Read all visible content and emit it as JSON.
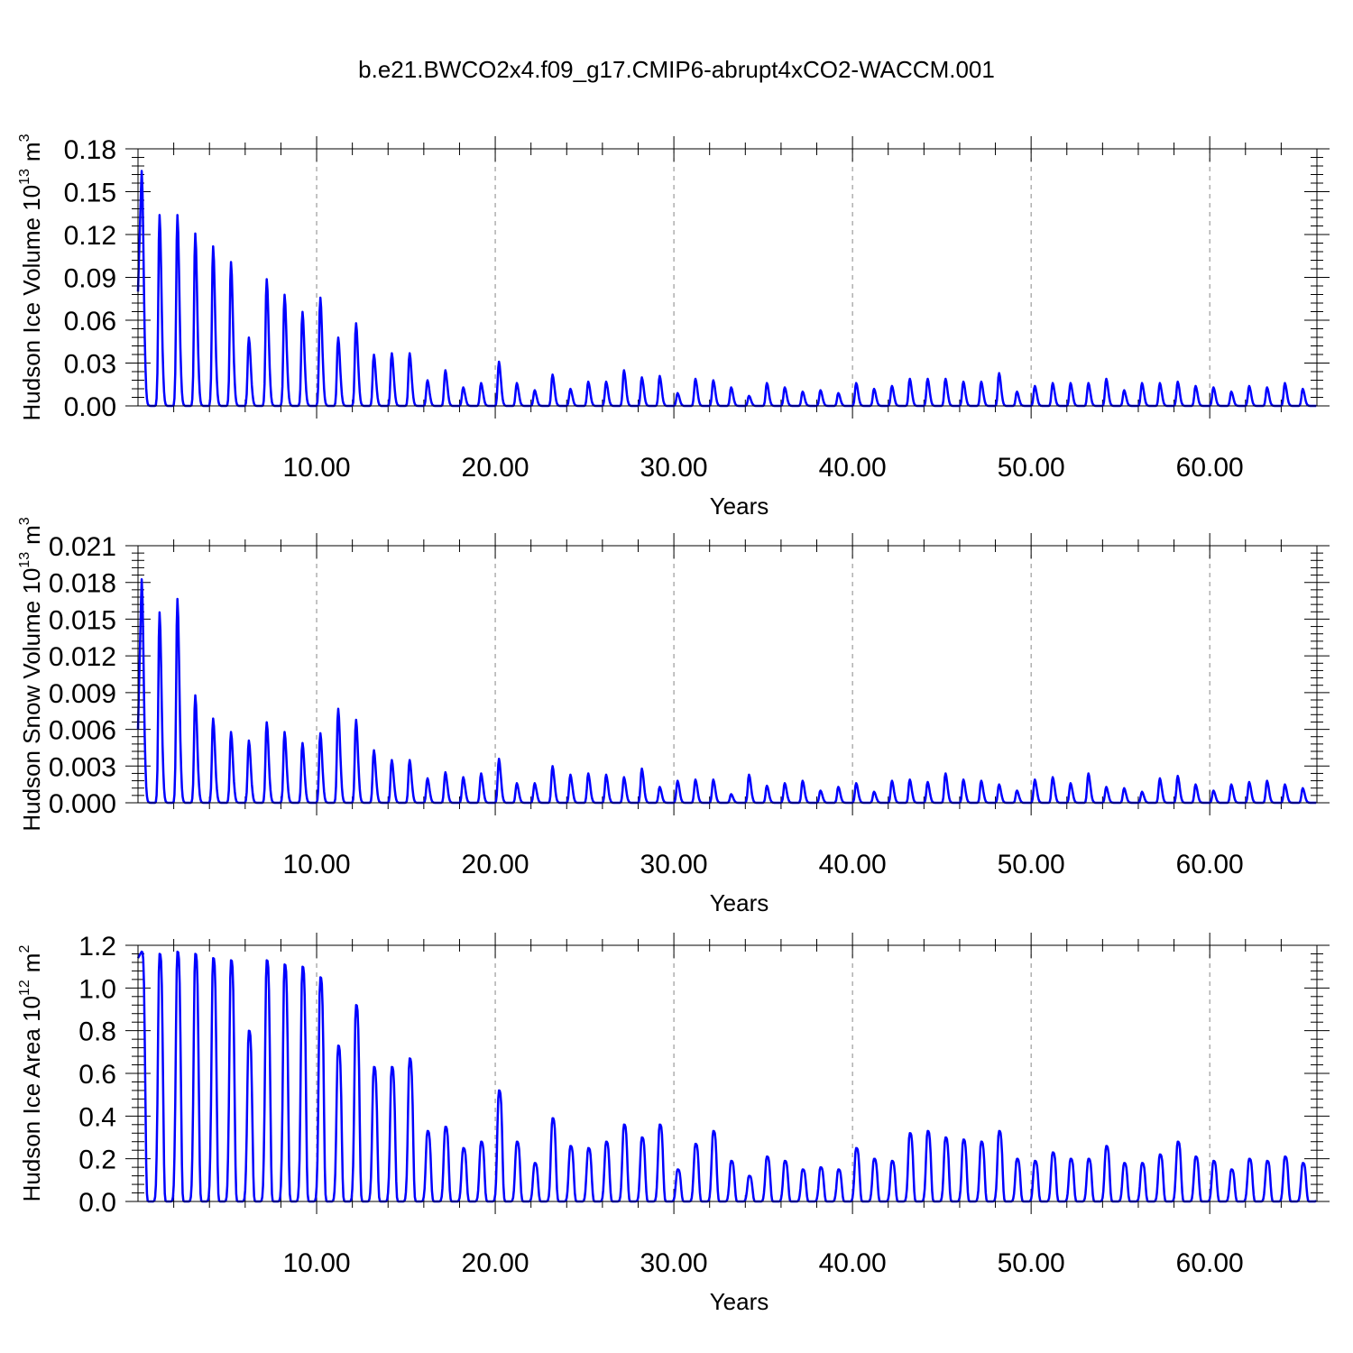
{
  "title": "b.e21.BWCO2x4.f09_g17.CMIP6-abrupt4xCO2-WACCM.001",
  "colors": {
    "line": "#0000ff",
    "axis": "#000000",
    "grid": "#888888"
  },
  "chart_data": [
    {
      "type": "line",
      "ylabel_main": "Hudson Ice Volume 10",
      "ylabel_exp": "13",
      "ylabel_unit": "m",
      "ylabel_unit_exp": "3",
      "xlabel": "Years",
      "xlim": [
        0,
        66
      ],
      "ylim": [
        0,
        0.18
      ],
      "xticks": [
        10,
        20,
        30,
        40,
        50,
        60
      ],
      "xtick_labels": [
        "10.00",
        "20.00",
        "30.00",
        "40.00",
        "50.00",
        "60.00"
      ],
      "yticks": [
        0,
        0.03,
        0.06,
        0.09,
        0.12,
        0.15,
        0.18
      ],
      "ytick_labels": [
        "0.00",
        "0.03",
        "0.06",
        "0.09",
        "0.12",
        "0.15",
        "0.18"
      ],
      "grid": "vertical dashed",
      "start": 0.08,
      "annual_peaks": [
        0.165,
        0.134,
        0.134,
        0.121,
        0.112,
        0.101,
        0.048,
        0.089,
        0.078,
        0.066,
        0.076,
        0.048,
        0.058,
        0.036,
        0.037,
        0.037,
        0.018,
        0.025,
        0.013,
        0.016,
        0.031,
        0.016,
        0.011,
        0.022,
        0.012,
        0.017,
        0.017,
        0.025,
        0.02,
        0.021,
        0.009,
        0.019,
        0.018,
        0.013,
        0.007,
        0.016,
        0.013,
        0.01,
        0.011,
        0.009,
        0.016,
        0.012,
        0.014,
        0.019,
        0.019,
        0.019,
        0.017,
        0.017,
        0.023,
        0.01,
        0.014,
        0.016,
        0.016,
        0.016,
        0.019,
        0.011,
        0.016,
        0.016,
        0.017,
        0.014,
        0.013,
        0.01,
        0.014,
        0.013,
        0.016,
        0.012
      ]
    },
    {
      "type": "line",
      "ylabel_main": "Hudson Snow Volume 10",
      "ylabel_exp": "13",
      "ylabel_unit": "m",
      "ylabel_unit_exp": "3",
      "xlabel": "Years",
      "xlim": [
        0,
        66
      ],
      "ylim": [
        0,
        0.021
      ],
      "xticks": [
        10,
        20,
        30,
        40,
        50,
        60
      ],
      "xtick_labels": [
        "10.00",
        "20.00",
        "30.00",
        "40.00",
        "50.00",
        "60.00"
      ],
      "yticks": [
        0,
        0.003,
        0.006,
        0.009,
        0.012,
        0.015,
        0.018,
        0.021
      ],
      "ytick_labels": [
        "0.000",
        "0.003",
        "0.006",
        "0.009",
        "0.012",
        "0.015",
        "0.018",
        "0.021"
      ],
      "grid": "vertical dashed",
      "start": 0.006,
      "annual_peaks": [
        0.0183,
        0.0156,
        0.0167,
        0.0088,
        0.0069,
        0.0058,
        0.0051,
        0.0066,
        0.0058,
        0.0049,
        0.0057,
        0.0077,
        0.0068,
        0.0043,
        0.0035,
        0.0035,
        0.002,
        0.0025,
        0.0021,
        0.0024,
        0.0036,
        0.0016,
        0.0016,
        0.003,
        0.0023,
        0.0024,
        0.0023,
        0.0021,
        0.0028,
        0.0013,
        0.0018,
        0.0019,
        0.0019,
        0.0007,
        0.0023,
        0.0014,
        0.0016,
        0.0018,
        0.001,
        0.0013,
        0.0016,
        0.0009,
        0.0018,
        0.0019,
        0.0017,
        0.0024,
        0.0019,
        0.0018,
        0.0015,
        0.001,
        0.0019,
        0.0021,
        0.0016,
        0.0024,
        0.0013,
        0.0012,
        0.0009,
        0.002,
        0.0022,
        0.0015,
        0.001,
        0.0015,
        0.0017,
        0.0018,
        0.0015,
        0.0012
      ]
    },
    {
      "type": "line",
      "ylabel_main": "Hudson Ice Area 10",
      "ylabel_exp": "12",
      "ylabel_unit": "m",
      "ylabel_unit_exp": "2",
      "xlabel": "Years",
      "xlim": [
        0,
        66
      ],
      "ylim": [
        0,
        1.2
      ],
      "xticks": [
        10,
        20,
        30,
        40,
        50,
        60
      ],
      "xtick_labels": [
        "10.00",
        "20.00",
        "30.00",
        "40.00",
        "50.00",
        "60.00"
      ],
      "yticks": [
        0,
        0.2,
        0.4,
        0.6,
        0.8,
        1.0,
        1.2
      ],
      "ytick_labels": [
        "0.0",
        "0.2",
        "0.4",
        "0.6",
        "0.8",
        "1.0",
        "1.2"
      ],
      "grid": "vertical dashed",
      "start": 1.14,
      "plateau_top": true,
      "annual_peaks": [
        1.17,
        1.16,
        1.17,
        1.16,
        1.14,
        1.13,
        0.8,
        1.13,
        1.11,
        1.1,
        1.05,
        0.73,
        0.92,
        0.63,
        0.63,
        0.67,
        0.33,
        0.35,
        0.25,
        0.28,
        0.52,
        0.28,
        0.18,
        0.39,
        0.26,
        0.25,
        0.28,
        0.36,
        0.3,
        0.36,
        0.15,
        0.27,
        0.33,
        0.19,
        0.12,
        0.21,
        0.19,
        0.15,
        0.16,
        0.15,
        0.25,
        0.2,
        0.19,
        0.32,
        0.33,
        0.3,
        0.29,
        0.28,
        0.33,
        0.2,
        0.19,
        0.23,
        0.2,
        0.2,
        0.26,
        0.18,
        0.18,
        0.22,
        0.28,
        0.21,
        0.19,
        0.15,
        0.2,
        0.19,
        0.21,
        0.18
      ]
    }
  ]
}
